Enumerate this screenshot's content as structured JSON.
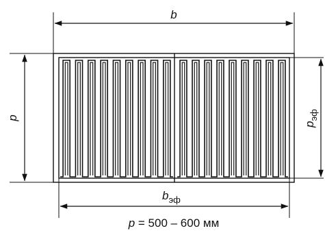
{
  "labels": {
    "b": "b",
    "b_eff_main": "b",
    "b_eff_sub": "эф",
    "p": "p",
    "p_eff_main": "p",
    "p_eff_sub": "эф",
    "caption_var": "p",
    "caption_rest": " = 500 – 600 мм"
  },
  "panels": {
    "count": 2,
    "loops_per_panel": 9
  },
  "colors": {
    "stroke": "#111111",
    "background": "#ffffff"
  }
}
